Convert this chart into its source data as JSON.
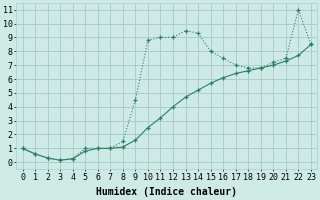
{
  "line1_x": [
    0,
    1,
    2,
    3,
    4,
    5,
    6,
    7,
    8,
    9,
    10,
    11,
    12,
    13,
    14,
    15,
    16,
    17,
    18,
    19,
    20,
    21,
    22,
    23
  ],
  "line1_y": [
    1.0,
    0.6,
    0.3,
    0.15,
    0.25,
    1.0,
    1.0,
    1.0,
    1.5,
    4.5,
    8.8,
    9.0,
    9.0,
    9.5,
    9.3,
    8.0,
    7.5,
    7.0,
    6.8,
    6.8,
    7.2,
    7.5,
    11.0,
    8.5
  ],
  "line2_x": [
    0,
    1,
    2,
    3,
    4,
    5,
    6,
    7,
    8,
    9,
    10,
    11,
    12,
    13,
    14,
    15,
    16,
    17,
    18,
    19,
    20,
    21,
    22,
    23
  ],
  "line2_y": [
    1.0,
    0.6,
    0.3,
    0.15,
    0.25,
    0.8,
    1.0,
    1.0,
    1.1,
    1.6,
    2.5,
    3.2,
    4.0,
    4.7,
    5.2,
    5.7,
    6.1,
    6.4,
    6.6,
    6.8,
    7.0,
    7.3,
    7.7,
    8.5
  ],
  "line_color": "#2d7d6e",
  "bg_color": "#ceeae5",
  "grid_color": "#aacfca",
  "xlabel": "Humidex (Indice chaleur)",
  "xlim": [
    -0.5,
    23.5
  ],
  "ylim": [
    -0.5,
    11.5
  ],
  "xticks": [
    0,
    1,
    2,
    3,
    4,
    5,
    6,
    7,
    8,
    9,
    10,
    11,
    12,
    13,
    14,
    15,
    16,
    17,
    18,
    19,
    20,
    21,
    22,
    23
  ],
  "yticks": [
    0,
    1,
    2,
    3,
    4,
    5,
    6,
    7,
    8,
    9,
    10,
    11
  ],
  "xlabel_fontsize": 7.0,
  "tick_fontsize": 6.0
}
